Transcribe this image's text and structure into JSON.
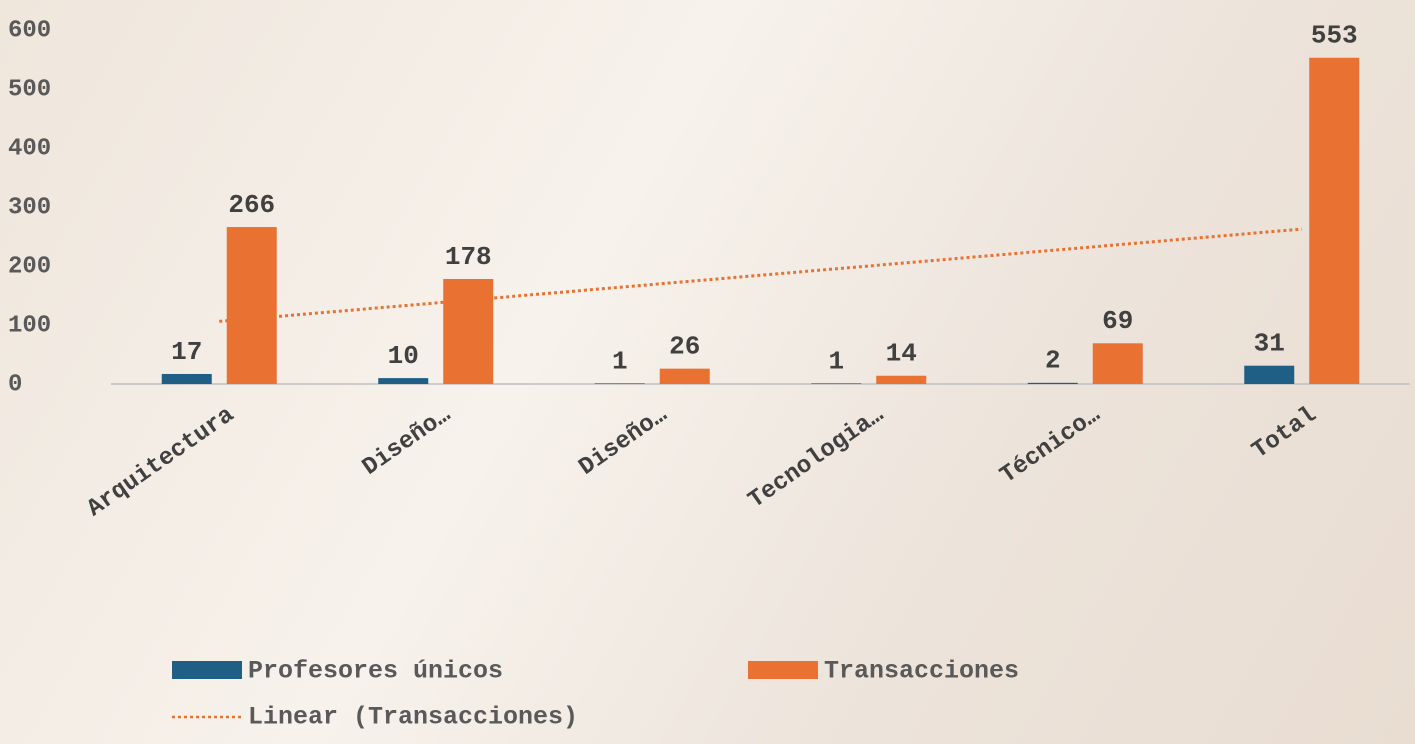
{
  "chart_data": {
    "type": "bar",
    "categories": [
      "Arquitectura",
      "Diseño…",
      "Diseño…",
      "Tecnologia…",
      "Técnico…",
      "Total"
    ],
    "series": [
      {
        "name": "Profesores únicos",
        "color": "#1f5f86",
        "values": [
          17,
          10,
          1,
          1,
          2,
          31
        ]
      },
      {
        "name": "Transacciones",
        "color": "#e97132",
        "values": [
          266,
          178,
          26,
          14,
          69,
          553
        ],
        "trendline": {
          "name": "Linear (Transacciones)",
          "kind": "linear",
          "color": "#e97132"
        }
      }
    ],
    "ylim": [
      0,
      600
    ],
    "yticks": [
      0,
      100,
      200,
      300,
      400,
      500,
      600
    ],
    "grid": false,
    "legend": "bottom"
  }
}
